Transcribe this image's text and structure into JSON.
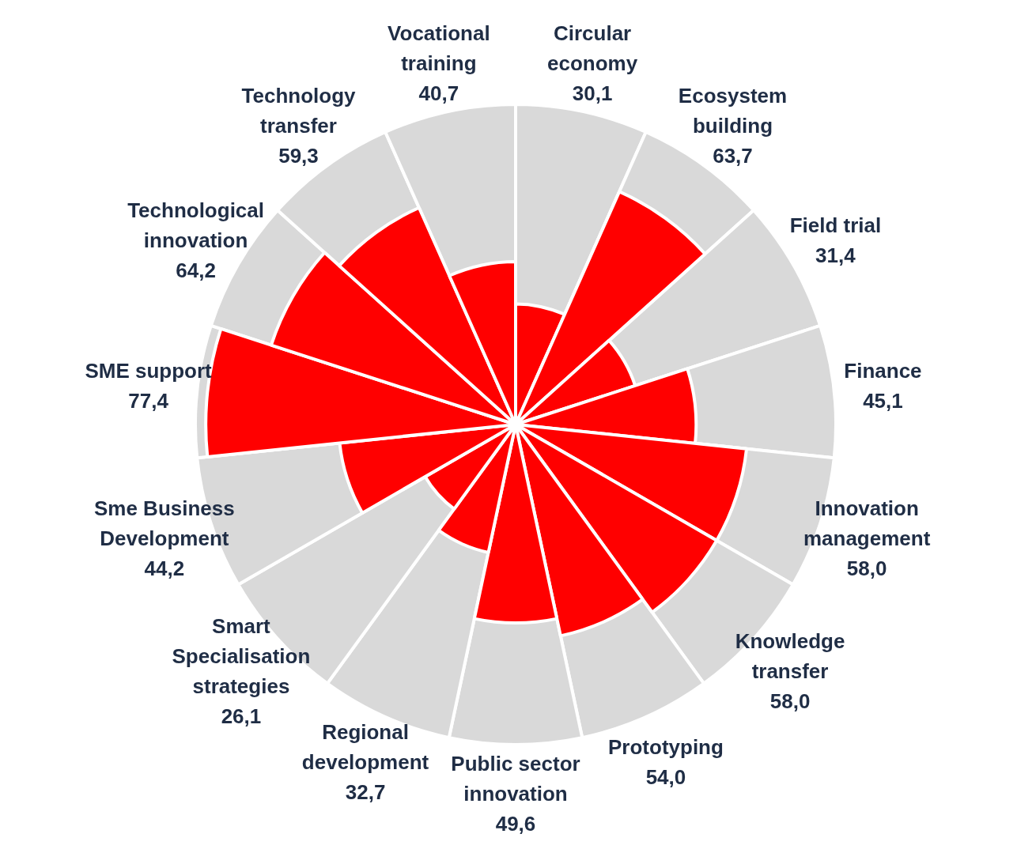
{
  "chart_data": {
    "type": "other",
    "categories": [
      "Circular economy",
      "Ecosystem building",
      "Field trial",
      "Finance",
      "Innovation management",
      "Knowledge transfer",
      "Prototyping",
      "Public sector innovation",
      "Regional development",
      "Smart Specialisation strategies",
      "Sme Business Development",
      "SME support",
      "Technological innovation",
      "Technology transfer",
      "Vocational training"
    ],
    "values": [
      30.1,
      63.7,
      31.4,
      45.1,
      58.0,
      58.0,
      54.0,
      49.6,
      32.7,
      26.1,
      44.2,
      77.4,
      64.2,
      59.3,
      40.7
    ],
    "value_labels": [
      "30,1",
      "63,7",
      "31,4",
      "45,1",
      "58,0",
      "58,0",
      "54,0",
      "49,6",
      "32,7",
      "26,1",
      "44,2",
      "77,4",
      "64,2",
      "59,3",
      "40,7"
    ],
    "color": "#ff0000"
  }
}
